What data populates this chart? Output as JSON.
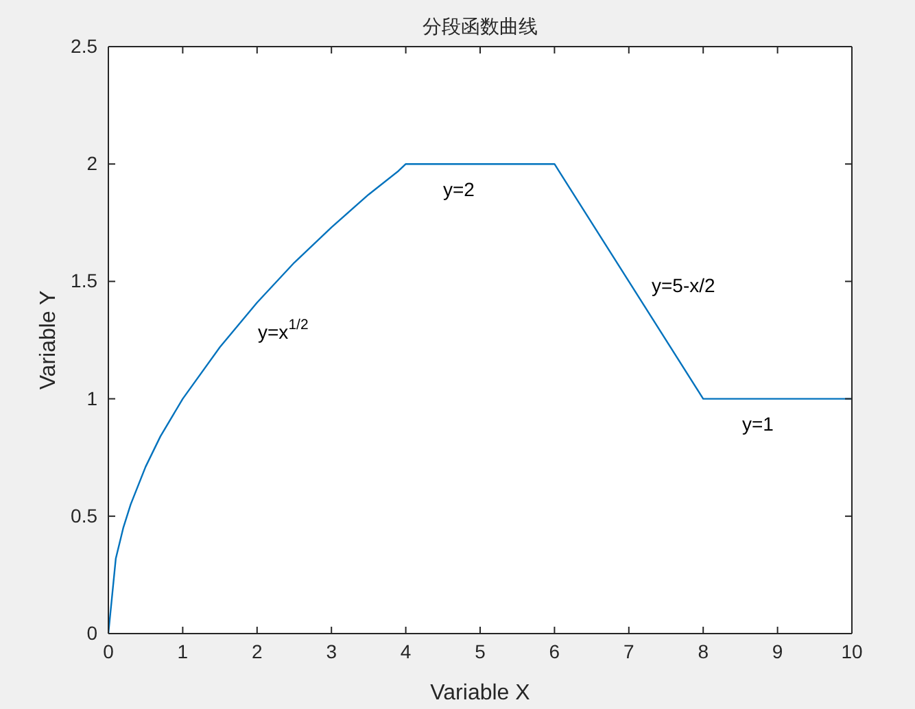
{
  "chart_data": {
    "type": "line",
    "title": "分段函数曲线",
    "xlabel": "Variable X",
    "ylabel": "Variable Y",
    "x": [
      0,
      0.1,
      0.2,
      0.3,
      0.5,
      0.7,
      1,
      1.5,
      2,
      2.5,
      3,
      3.5,
      3.9,
      4,
      6,
      6.1,
      8,
      10
    ],
    "series": [
      {
        "color": "#0072bd",
        "values": [
          0,
          0.32,
          0.45,
          0.55,
          0.71,
          0.84,
          1,
          1.22,
          1.41,
          1.58,
          1.73,
          1.87,
          1.97,
          2,
          2,
          1.95,
          1,
          1
        ]
      }
    ],
    "xlim": [
      0,
      10
    ],
    "ylim": [
      0,
      2.5
    ],
    "xticks": [
      0,
      1,
      2,
      3,
      4,
      5,
      6,
      7,
      8,
      9,
      10
    ],
    "yticks": [
      0,
      0.5,
      1,
      1.5,
      2,
      2.5
    ],
    "grid": false,
    "marker": "none",
    "line_style": "solid",
    "annotations": [
      "y=x$^{1/2}$",
      "y=2",
      "y=5-x/2",
      "y=1"
    ]
  }
}
